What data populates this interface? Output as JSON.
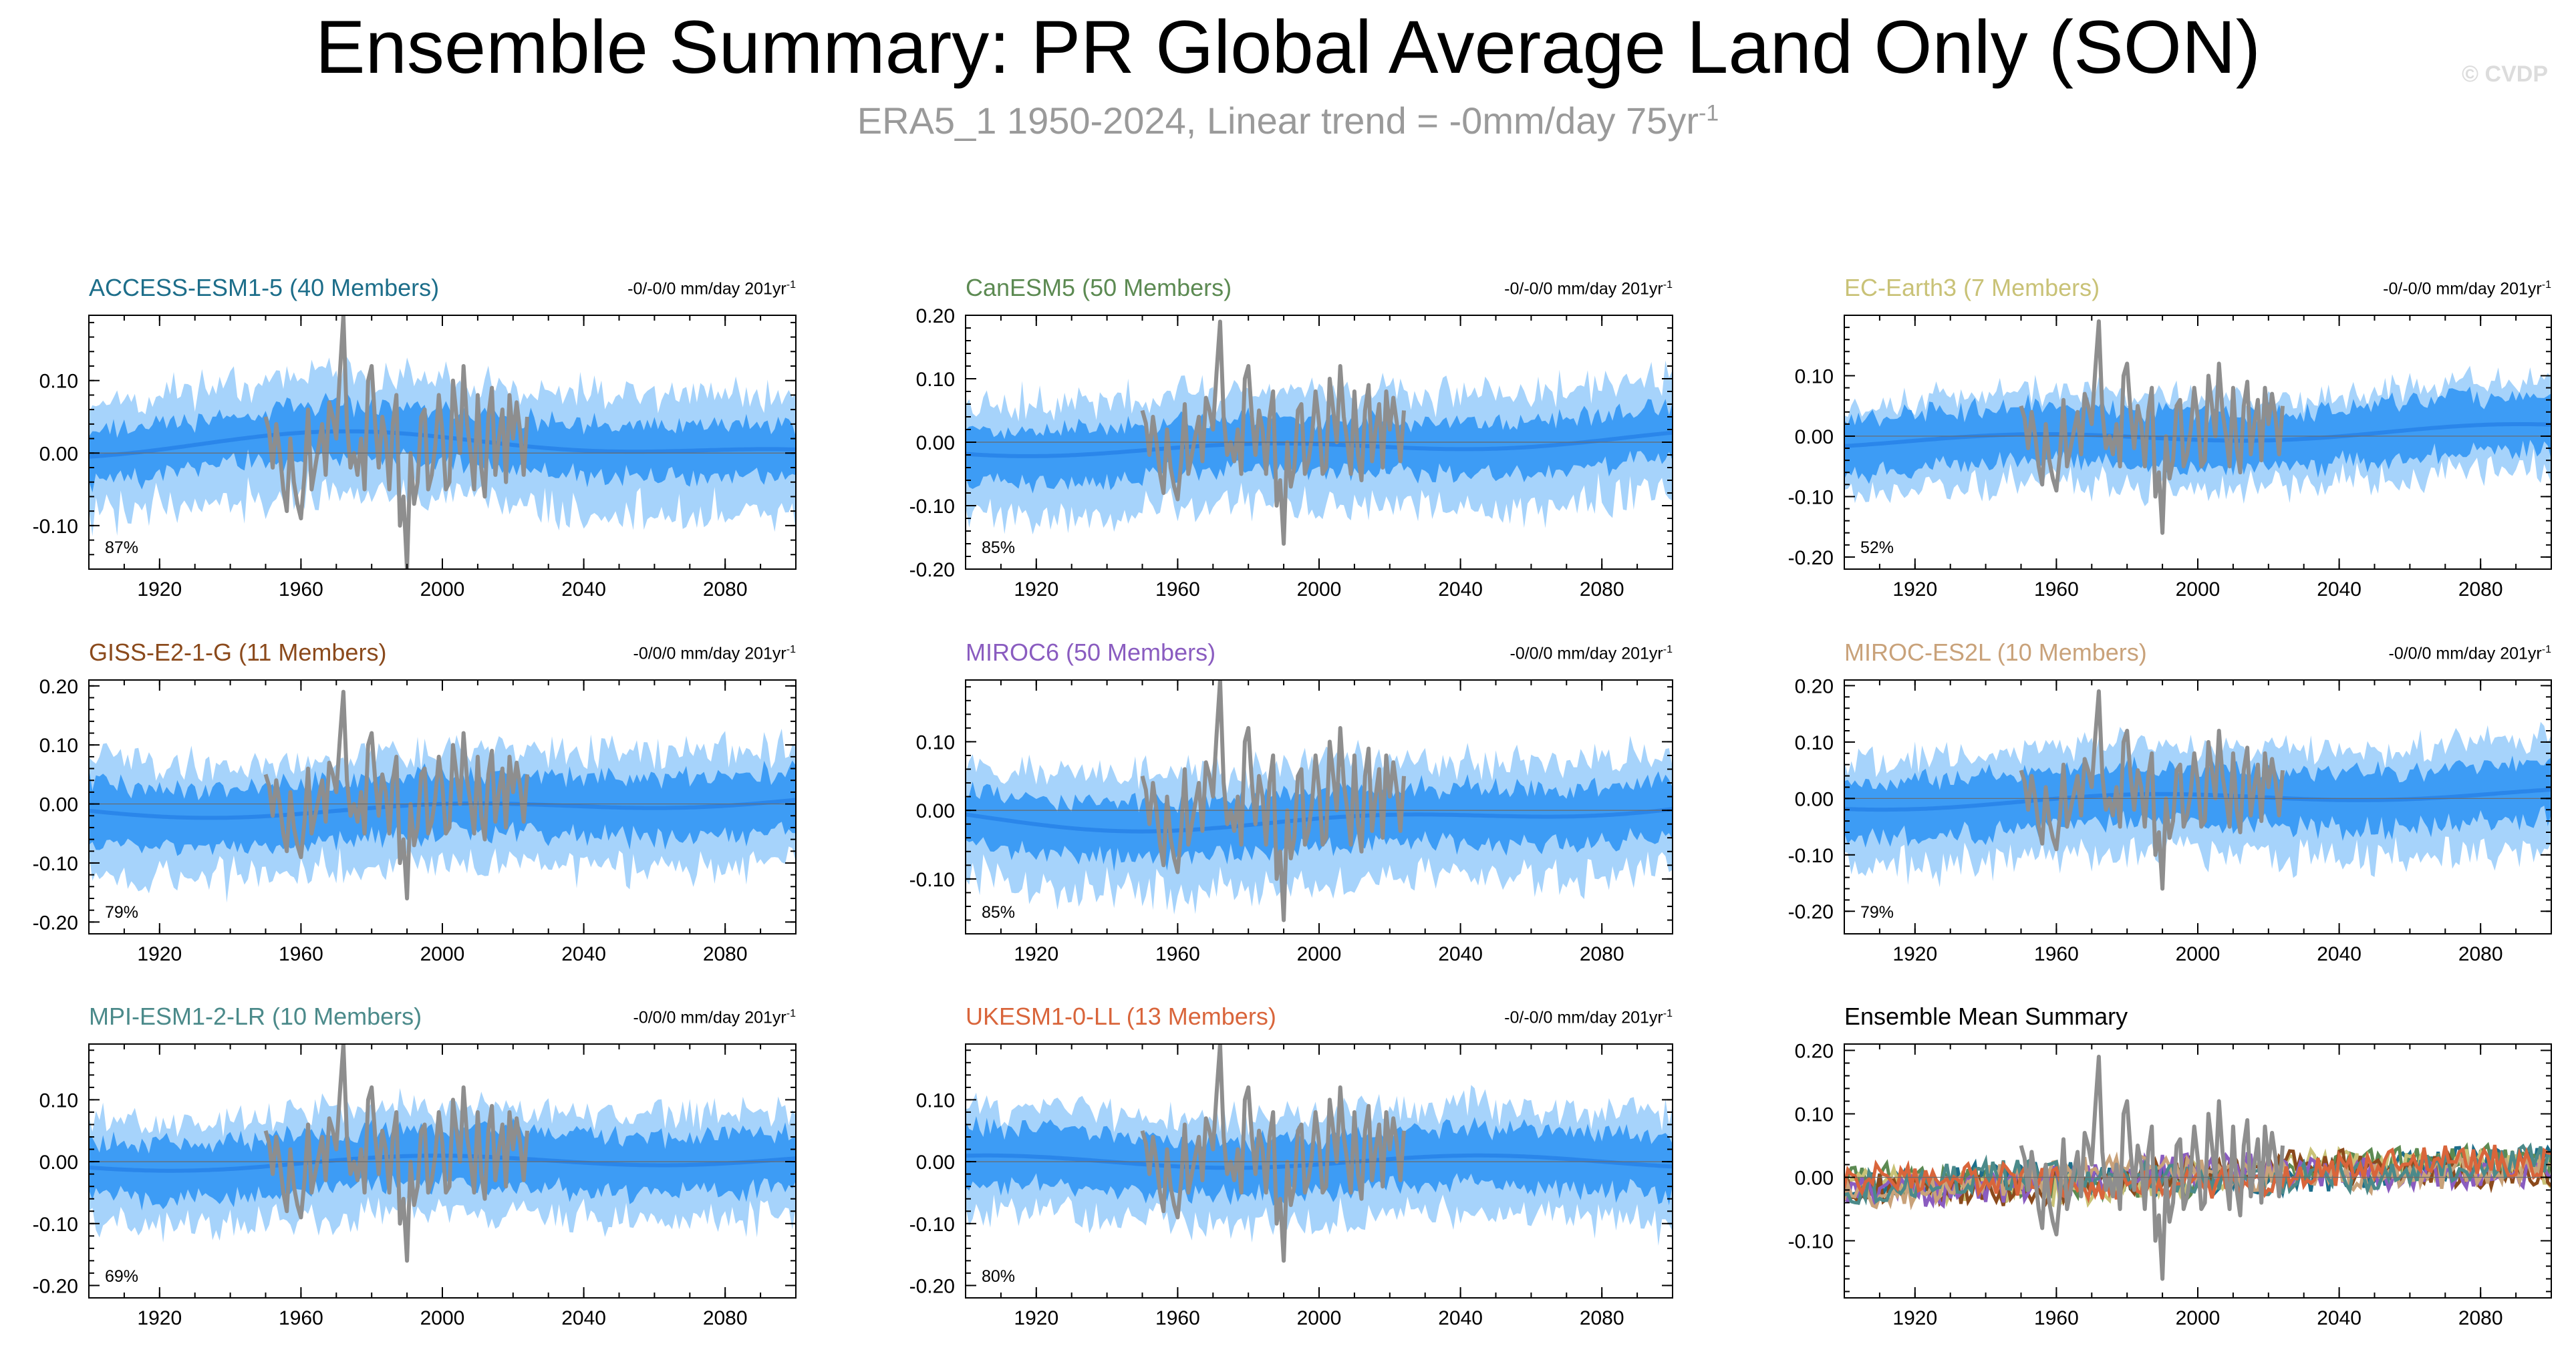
{
  "header": {
    "title": "Ensemble Summary: PR Global Average Land Only (SON)",
    "subtitle_main": "ERA5_1 1950-2024, Linear trend = -0mm/day 75yr",
    "subtitle_exp": "-1",
    "watermark": "© CVDP"
  },
  "colors": {
    "band_outer": "#a6d3fb",
    "band_inner": "#3d9cf5",
    "ensemble_mean": "#2a86ea",
    "observations": "#8e8e8e",
    "frame": "#000000"
  },
  "chart_data": [
    {
      "type": "area",
      "title": "ACCESS-ESM1-5 (40 Members)",
      "title_color": "#1d6e8a",
      "trend": "-0/-0/0 mm/day 201yr",
      "trend_exp": "-1",
      "percent": "87%",
      "xlim": [
        1900,
        2100
      ],
      "ylim": [
        -0.16,
        0.19
      ],
      "xticks": [
        1920,
        1960,
        2000,
        2040,
        2080
      ],
      "xtick_labels": [
        "1920",
        "1960",
        "2000",
        "2040",
        "2080"
      ],
      "yticks": [
        -0.1,
        0.0,
        0.1
      ],
      "ytick_labels": [
        "-0.10",
        "0.00",
        "0.10"
      ],
      "seed": 11,
      "outer": 0.075,
      "inner": 0.035,
      "shift": [
        0.0,
        0.02,
        -0.01
      ]
    },
    {
      "type": "area",
      "title": "CanESM5 (50 Members)",
      "title_color": "#5c8a52",
      "trend": "-0/-0/0 mm/day 201yr",
      "trend_exp": "-1",
      "percent": "85%",
      "xlim": [
        1900,
        2100
      ],
      "ylim": [
        -0.2,
        0.2
      ],
      "xticks": [
        1920,
        1960,
        2000,
        2040,
        2080
      ],
      "xtick_labels": [
        "1920",
        "1960",
        "2000",
        "2040",
        "2080"
      ],
      "yticks": [
        -0.2,
        -0.1,
        0.0,
        0.1,
        0.2
      ],
      "ytick_labels": [
        "-0.20",
        "-0.10",
        "0.00",
        "0.10",
        "0.20"
      ],
      "seed": 23,
      "outer": 0.085,
      "inner": 0.04,
      "shift": [
        0.0,
        -0.01,
        0.02
      ]
    },
    {
      "type": "area",
      "title": "EC-Earth3 (7 Members)",
      "title_color": "#c9c277",
      "trend": "-0/-0/0 mm/day 201yr",
      "trend_exp": "-1",
      "percent": "52%",
      "xlim": [
        1900,
        2100
      ],
      "ylim": [
        -0.22,
        0.2
      ],
      "xticks": [
        1920,
        1960,
        2000,
        2040,
        2080
      ],
      "xtick_labels": [
        "1920",
        "1960",
        "2000",
        "2040",
        "2080"
      ],
      "yticks": [
        -0.2,
        -0.1,
        0.0,
        0.1
      ],
      "ytick_labels": [
        "-0.20",
        "-0.10",
        "0.00",
        "0.10"
      ],
      "seed": 37,
      "outer": 0.07,
      "inner": 0.045,
      "shift": [
        0.0,
        0.0,
        0.02
      ]
    },
    {
      "type": "area",
      "title": "GISS-E2-1-G (11 Members)",
      "title_color": "#8b4a1c",
      "trend": "-0/0/0 mm/day 201yr",
      "trend_exp": "-1",
      "percent": "79%",
      "xlim": [
        1900,
        2100
      ],
      "ylim": [
        -0.22,
        0.21
      ],
      "xticks": [
        1920,
        1960,
        2000,
        2040,
        2080
      ],
      "xtick_labels": [
        "1920",
        "1960",
        "2000",
        "2040",
        "2080"
      ],
      "yticks": [
        -0.2,
        -0.1,
        0.0,
        0.1,
        0.2
      ],
      "ytick_labels": [
        "-0.20",
        "-0.10",
        "0.00",
        "0.10",
        "0.20"
      ],
      "seed": 41,
      "outer": 0.09,
      "inner": 0.05,
      "shift": [
        0.0,
        -0.01,
        0.02
      ]
    },
    {
      "type": "area",
      "title": "MIROC6 (50 Members)",
      "title_color": "#8a5cc0",
      "trend": "-0/0/0 mm/day 201yr",
      "trend_exp": "-1",
      "percent": "85%",
      "xlim": [
        1900,
        2100
      ],
      "ylim": [
        -0.18,
        0.19
      ],
      "xticks": [
        1920,
        1960,
        2000,
        2040,
        2080
      ],
      "xtick_labels": [
        "1920",
        "1960",
        "2000",
        "2040",
        "2080"
      ],
      "yticks": [
        -0.1,
        0.0,
        0.1
      ],
      "ytick_labels": [
        "-0.10",
        "0.00",
        "0.10"
      ],
      "seed": 53,
      "outer": 0.08,
      "inner": 0.04,
      "shift": [
        0.0,
        -0.02,
        0.02
      ]
    },
    {
      "type": "area",
      "title": "MIROC-ES2L (10 Members)",
      "title_color": "#c9a27a",
      "trend": "-0/0/0 mm/day 201yr",
      "trend_exp": "-1",
      "percent": "79%",
      "xlim": [
        1900,
        2100
      ],
      "ylim": [
        -0.24,
        0.21
      ],
      "xticks": [
        1920,
        1960,
        2000,
        2040,
        2080
      ],
      "xtick_labels": [
        "1920",
        "1960",
        "2000",
        "2040",
        "2080"
      ],
      "yticks": [
        -0.2,
        -0.1,
        0.0,
        0.1,
        0.2
      ],
      "ytick_labels": [
        "-0.20",
        "-0.10",
        "0.00",
        "0.10",
        "0.20"
      ],
      "seed": 67,
      "outer": 0.09,
      "inner": 0.05,
      "shift": [
        0.0,
        0.0,
        0.02
      ]
    },
    {
      "type": "area",
      "title": "MPI-ESM1-2-LR (10 Members)",
      "title_color": "#4b8a8a",
      "trend": "-0/0/0 mm/day 201yr",
      "trend_exp": "-1",
      "percent": "69%",
      "xlim": [
        1900,
        2100
      ],
      "ylim": [
        -0.22,
        0.19
      ],
      "xticks": [
        1920,
        1960,
        2000,
        2040,
        2080
      ],
      "xtick_labels": [
        "1920",
        "1960",
        "2000",
        "2040",
        "2080"
      ],
      "yticks": [
        -0.2,
        -0.1,
        0.0,
        0.1
      ],
      "ytick_labels": [
        "-0.20",
        "-0.10",
        "0.00",
        "0.10"
      ],
      "seed": 79,
      "outer": 0.08,
      "inner": 0.045,
      "shift": [
        0.0,
        0.0,
        0.01
      ]
    },
    {
      "type": "area",
      "title": "UKESM1-0-LL (13 Members)",
      "title_color": "#d9653b",
      "trend": "-0/-0/0 mm/day 201yr",
      "trend_exp": "-1",
      "percent": "80%",
      "xlim": [
        1900,
        2100
      ],
      "ylim": [
        -0.22,
        0.19
      ],
      "xticks": [
        1920,
        1960,
        2000,
        2040,
        2080
      ],
      "xtick_labels": [
        "1920",
        "1960",
        "2000",
        "2040",
        "2080"
      ],
      "yticks": [
        -0.2,
        -0.1,
        0.0,
        0.1
      ],
      "ytick_labels": [
        "-0.20",
        "-0.10",
        "0.00",
        "0.10"
      ],
      "seed": 83,
      "outer": 0.08,
      "inner": 0.045,
      "shift": [
        0.0,
        0.0,
        0.0
      ]
    },
    {
      "type": "line",
      "title": "Ensemble Mean Summary",
      "title_color": "#000000",
      "trend": "",
      "trend_exp": "",
      "percent": "",
      "xlim": [
        1900,
        2100
      ],
      "ylim": [
        -0.19,
        0.21
      ],
      "xticks": [
        1920,
        1960,
        2000,
        2040,
        2080
      ],
      "xtick_labels": [
        "1920",
        "1960",
        "2000",
        "2040",
        "2080"
      ],
      "yticks": [
        -0.1,
        0.0,
        0.1,
        0.2
      ],
      "ytick_labels": [
        "-0.10",
        "0.00",
        "0.10",
        "0.20"
      ],
      "seed": 97,
      "series_colors": [
        "#1d6e8a",
        "#5c8a52",
        "#c9c277",
        "#8b4a1c",
        "#8a5cc0",
        "#c9a27a",
        "#4b8a8a",
        "#d9653b"
      ]
    }
  ],
  "observations": {
    "name": "ERA5_1",
    "years": [
      1950,
      2024
    ],
    "values": [
      0.05,
      0.03,
      -0.02,
      0.04,
      0.0,
      -0.05,
      -0.08,
      0.02,
      -0.04,
      -0.07,
      -0.09,
      -0.03,
      0.06,
      -0.05,
      -0.02,
      0.01,
      0.04,
      -0.03,
      0.07,
      0.05,
      0.02,
      0.11,
      0.19,
      0.04,
      -0.02,
      0.0,
      -0.03,
      0.02,
      -0.05,
      0.1,
      0.12,
      0.04,
      -0.02,
      0.05,
      0.02,
      -0.05,
      0.04,
      0.08,
      -0.1,
      -0.06,
      -0.16,
      0.0,
      -0.07,
      -0.04,
      0.05,
      0.06,
      -0.05,
      -0.03,
      0.01,
      0.08,
      0.03,
      -0.05,
      -0.04,
      0.1,
      0.05,
      0.0,
      0.12,
      0.04,
      0.0,
      -0.05,
      0.08,
      -0.02,
      -0.06,
      0.05,
      0.09,
      -0.03,
      0.02,
      0.06,
      -0.04,
      0.08,
      0.02,
      0.07,
      0.03,
      -0.03,
      0.05
    ]
  }
}
